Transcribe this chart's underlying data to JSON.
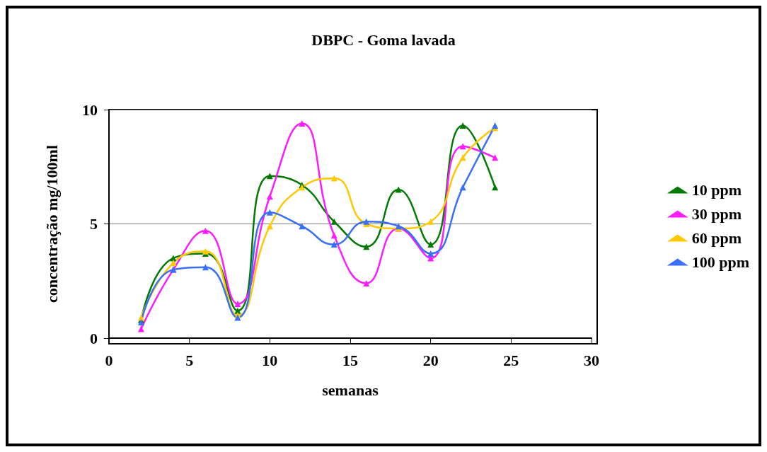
{
  "chart_data": {
    "type": "line",
    "title": "DBPC - Goma lavada",
    "xlabel": "semanas",
    "ylabel": "concentração mg/100ml",
    "x": [
      2,
      4,
      6,
      8,
      10,
      12,
      14,
      16,
      18,
      20,
      22,
      24
    ],
    "series": [
      {
        "name": "10 ppm",
        "color": "#007a00",
        "values": [
          0.8,
          3.5,
          3.7,
          1.2,
          7.1,
          6.7,
          5.1,
          4.0,
          6.5,
          4.1,
          9.3,
          6.6
        ]
      },
      {
        "name": "30 ppm",
        "color": "#ff1aff",
        "values": [
          0.4,
          3.0,
          4.7,
          1.5,
          6.2,
          9.4,
          4.5,
          2.4,
          4.8,
          3.5,
          8.4,
          7.9
        ]
      },
      {
        "name": "60 ppm",
        "color": "#ffc800",
        "values": [
          0.9,
          3.3,
          3.8,
          1.0,
          4.9,
          6.6,
          7.0,
          5.0,
          4.8,
          5.1,
          7.9,
          9.2
        ]
      },
      {
        "name": "100 ppm",
        "color": "#3a6ff7",
        "values": [
          0.7,
          3.0,
          3.1,
          0.9,
          5.5,
          4.9,
          4.1,
          5.1,
          4.9,
          3.7,
          6.6,
          9.3
        ]
      }
    ],
    "xlim": [
      0,
      30
    ],
    "xticks": [
      0,
      5,
      10,
      15,
      20,
      25,
      30
    ],
    "ylim": [
      0,
      10
    ],
    "yticks": [
      0,
      5,
      10
    ],
    "grid": "y",
    "legend": "right",
    "marker": "triangle",
    "line_style": "solid"
  }
}
